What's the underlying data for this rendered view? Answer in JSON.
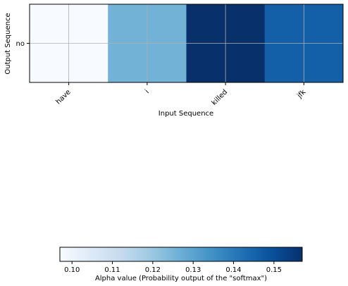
{
  "chart_data": {
    "type": "heatmap",
    "title": "",
    "xlabel": "Input Sequence",
    "ylabel": "Output Sequence",
    "x_categories": [
      "have",
      "i",
      "killed",
      "jfk"
    ],
    "y_categories": [
      "no"
    ],
    "values": [
      [
        0.097,
        0.126,
        0.157,
        0.146
      ]
    ],
    "grid": true,
    "colormap": "Blues",
    "colorbar": {
      "label": "Alpha value (Probability output of the \"softmax\")",
      "orientation": "horizontal",
      "placement": "bottom",
      "range": [
        0.097,
        0.157
      ],
      "ticks": [
        "0.10",
        "0.11",
        "0.12",
        "0.13",
        "0.14",
        "0.15"
      ]
    }
  }
}
